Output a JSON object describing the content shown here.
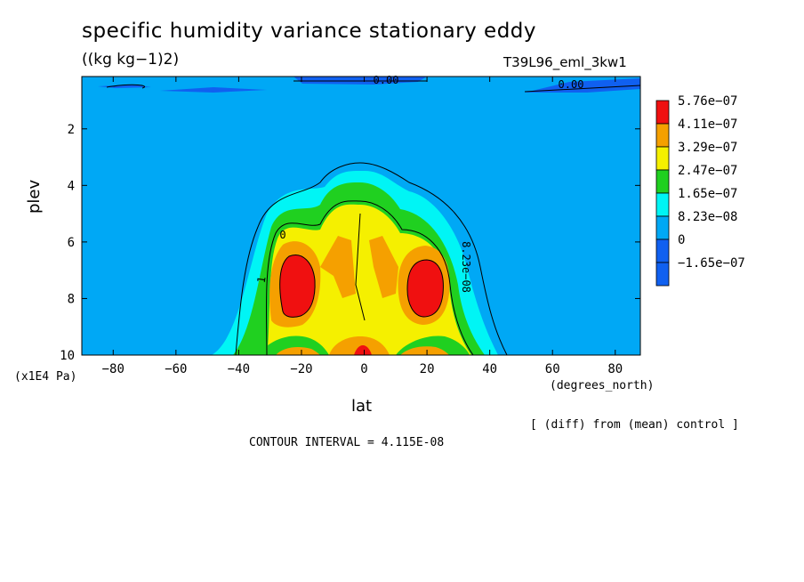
{
  "chart_data": {
    "type": "contour",
    "title": "specific humidity variance stationary eddy",
    "units": "((kg kg−1)2)",
    "run_id": "T39L96_eml_3kw1",
    "xlabel": "lat",
    "xunit": "(degrees_north)",
    "ylabel": "plev",
    "yunit": "(x1E4 Pa)",
    "xlim": [
      -90,
      88
    ],
    "ylim": [
      10,
      0.15
    ],
    "xticks": [
      -80,
      -60,
      -40,
      -20,
      0,
      20,
      40,
      60,
      80
    ],
    "yticks": [
      2,
      4,
      6,
      8,
      10
    ],
    "note": "[ (diff) from (mean) control ]",
    "contour_interval": "CONTOUR INTERVAL = 4.115E-08",
    "contour_labels": [
      "0.00",
      "0.00",
      "8.23e−08",
      "0",
      "1"
    ],
    "colorbar": [
      {
        "label": "5.76e−07",
        "color": "#f01010"
      },
      {
        "label": "4.11e−07",
        "color": "#f5a000"
      },
      {
        "label": "3.29e−07",
        "color": "#f5f000"
      },
      {
        "label": "2.47e−07",
        "color": "#20d020"
      },
      {
        "label": "1.65e−07",
        "color": "#00f5f5"
      },
      {
        "label": "8.23e−08",
        "color": "#00a8f5"
      },
      {
        "label": "0",
        "color": "#1060f0"
      },
      {
        "label": "−1.65e−07",
        "color": "#1060f0"
      }
    ]
  }
}
